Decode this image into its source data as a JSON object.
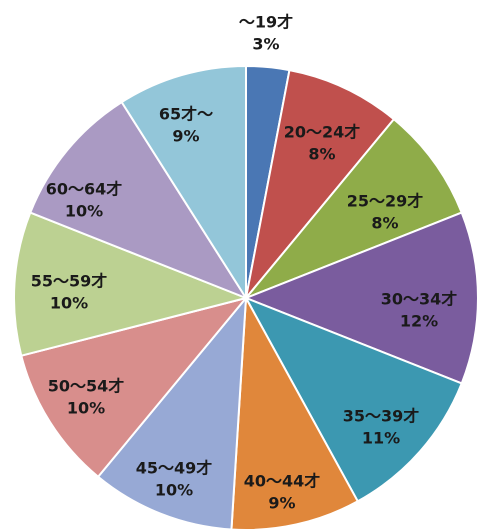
{
  "chart_data": {
    "type": "pie",
    "title": "",
    "start_angle_deg": 0,
    "direction": "clockwise",
    "slices": [
      {
        "name": "～19才",
        "value": 3,
        "label": "3%",
        "color": "#4a77b4"
      },
      {
        "name": "20～24才",
        "value": 8,
        "label": "8%",
        "color": "#c0504d"
      },
      {
        "name": "25～29才",
        "value": 8,
        "label": "8%",
        "color": "#8fac49"
      },
      {
        "name": "30～34才",
        "value": 12,
        "label": "12%",
        "color": "#7a5c9e"
      },
      {
        "name": "35～39才",
        "value": 11,
        "label": "11%",
        "color": "#3c98b1"
      },
      {
        "name": "40～44才",
        "value": 9,
        "label": "9%",
        "color": "#e0873b"
      },
      {
        "name": "45～49才",
        "value": 10,
        "label": "10%",
        "color": "#97a9d5"
      },
      {
        "name": "50～54才",
        "value": 10,
        "label": "10%",
        "color": "#d88e8c"
      },
      {
        "name": "55～59才",
        "value": 10,
        "label": "10%",
        "color": "#bcd192"
      },
      {
        "name": "60～64才",
        "value": 10,
        "label": "10%",
        "color": "#aa9ac3"
      },
      {
        "name": "65才～",
        "value": 9,
        "label": "9%",
        "color": "#93c6d9"
      }
    ]
  }
}
